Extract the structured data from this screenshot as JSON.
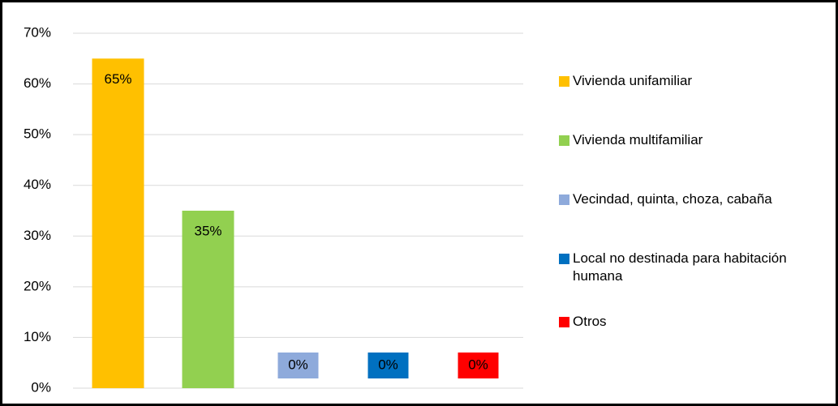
{
  "chart_data": {
    "type": "bar",
    "series": [
      {
        "name": "Vivienda unifamiliar",
        "color": "#ffc000",
        "values": [
          65
        ],
        "value_labels": [
          "65%"
        ]
      },
      {
        "name": "Vivienda multifamiliar",
        "color": "#92d050",
        "values": [
          35
        ],
        "value_labels": [
          "35%"
        ]
      },
      {
        "name": "Vecindad, quinta, choza, cabaña",
        "color": "#8eaadb",
        "values": [
          0
        ],
        "value_labels": [
          "0%"
        ]
      },
      {
        "name": "Local no destinada para habitación humana",
        "color": "#0070c0",
        "values": [
          0
        ],
        "value_labels": [
          "0%"
        ]
      },
      {
        "name": "Otros",
        "color": "#ff0000",
        "values": [
          0
        ],
        "value_labels": [
          "0%"
        ]
      }
    ],
    "ylim": [
      0,
      70
    ],
    "yticks": [
      {
        "value": 0,
        "label": "0%"
      },
      {
        "value": 10,
        "label": "10%"
      },
      {
        "value": 20,
        "label": "20%"
      },
      {
        "value": 30,
        "label": "30%"
      },
      {
        "value": 40,
        "label": "40%"
      },
      {
        "value": 50,
        "label": "50%"
      },
      {
        "value": 60,
        "label": "60%"
      },
      {
        "value": 70,
        "label": "70%"
      }
    ],
    "grid": true,
    "legend": "right"
  }
}
